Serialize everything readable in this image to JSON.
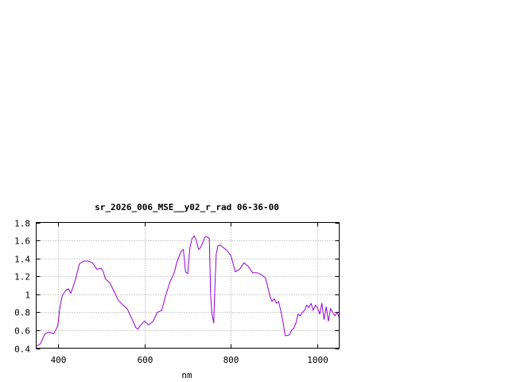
{
  "chart_data": {
    "type": "line",
    "title": "sr_2026_006_MSE__y02_r_rad 06-36-00",
    "xlabel": "nm",
    "ylabel": "",
    "xlim": [
      350,
      1050
    ],
    "ylim": [
      0.4,
      1.8
    ],
    "xticks": [
      400,
      600,
      800,
      1000
    ],
    "xtick_labels": [
      "400",
      "600",
      "800",
      "1000"
    ],
    "yticks": [
      0.4,
      0.6,
      0.8,
      1.0,
      1.2,
      1.4,
      1.6,
      1.8
    ],
    "ytick_labels": [
      "0.4",
      "0.6",
      "0.8",
      "1",
      "1.2",
      "1.4",
      "1.6",
      "1.8"
    ],
    "grid": true,
    "legend": "none",
    "series_color": "#9400d3",
    "series": [
      {
        "x": [
          350,
          360,
          370,
          380,
          390,
          395,
          400,
          405,
          410,
          415,
          420,
          425,
          430,
          440,
          450,
          460,
          470,
          480,
          490,
          500,
          505,
          510,
          520,
          530,
          540,
          550,
          560,
          570,
          580,
          585,
          590,
          600,
          610,
          620,
          630,
          640,
          650,
          660,
          665,
          670,
          675,
          680,
          685,
          690,
          695,
          700,
          705,
          710,
          715,
          720,
          725,
          730,
          735,
          740,
          745,
          750,
          753,
          756,
          760,
          763,
          766,
          770,
          775,
          780,
          790,
          800,
          810,
          820,
          830,
          840,
          850,
          860,
          870,
          880,
          890,
          895,
          900,
          905,
          910,
          915,
          920,
          925,
          930,
          935,
          940,
          945,
          950,
          955,
          960,
          965,
          970,
          975,
          980,
          985,
          990,
          995,
          1000,
          1005,
          1010,
          1015,
          1020,
          1025,
          1030,
          1035,
          1040,
          1045,
          1050
        ],
        "y": [
          0.42,
          0.45,
          0.56,
          0.58,
          0.56,
          0.6,
          0.65,
          0.86,
          0.98,
          1.02,
          1.05,
          1.06,
          1.01,
          1.15,
          1.34,
          1.37,
          1.37,
          1.35,
          1.28,
          1.29,
          1.25,
          1.17,
          1.13,
          1.03,
          0.93,
          0.88,
          0.84,
          0.74,
          0.63,
          0.61,
          0.65,
          0.7,
          0.66,
          0.7,
          0.8,
          0.82,
          1.0,
          1.15,
          1.2,
          1.26,
          1.36,
          1.42,
          1.48,
          1.5,
          1.25,
          1.23,
          1.51,
          1.62,
          1.65,
          1.6,
          1.5,
          1.52,
          1.58,
          1.64,
          1.64,
          1.62,
          1.0,
          0.78,
          0.68,
          1.1,
          1.45,
          1.54,
          1.55,
          1.53,
          1.49,
          1.43,
          1.25,
          1.28,
          1.35,
          1.31,
          1.24,
          1.24,
          1.22,
          1.18,
          0.98,
          0.92,
          0.95,
          0.9,
          0.92,
          0.82,
          0.7,
          0.54,
          0.54,
          0.55,
          0.6,
          0.62,
          0.68,
          0.78,
          0.76,
          0.8,
          0.82,
          0.88,
          0.85,
          0.9,
          0.82,
          0.88,
          0.85,
          0.78,
          0.9,
          0.72,
          0.86,
          0.7,
          0.84,
          0.8,
          0.76,
          0.8,
          0.74
        ]
      }
    ]
  }
}
